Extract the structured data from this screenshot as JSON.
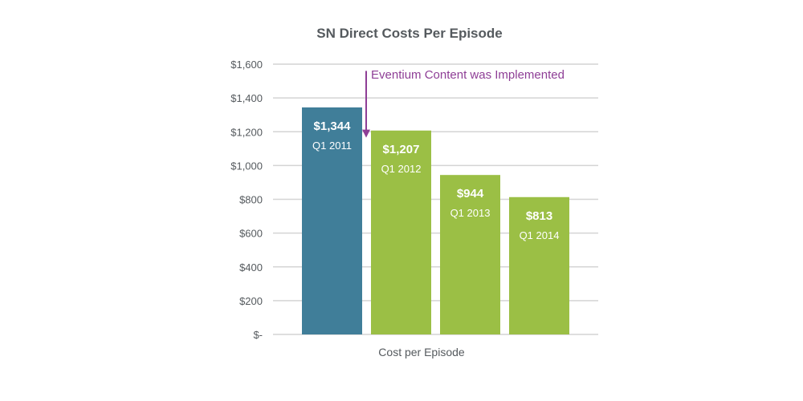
{
  "chart_data": {
    "type": "bar",
    "title": "SN Direct Costs Per Episode",
    "xlabel": "Cost per Episode",
    "ylabel": "",
    "ylim": [
      0,
      1600
    ],
    "yticks": [
      0,
      200,
      400,
      600,
      800,
      1000,
      1200,
      1400,
      1600
    ],
    "ytick_labels": [
      "$-",
      "$200",
      "$400",
      "$600",
      "$800",
      "$1,000",
      "$1,200",
      "$1,400",
      "$1,600"
    ],
    "grid": true,
    "categories": [
      "Q1 2011",
      "Q1 2012",
      "Q1 2013",
      "Q1 2014"
    ],
    "values": [
      1344,
      1207,
      944,
      813
    ],
    "value_labels": [
      "$1,344",
      "$1,207",
      "$944",
      "$813"
    ],
    "bar_colors": [
      "#407e99",
      "#9bbf45",
      "#9bbf45",
      "#9bbf45"
    ],
    "annotation": {
      "text": "Eventium Content was Implemented",
      "color": "#8e3e96",
      "between_categories": [
        "Q1 2011",
        "Q1 2012"
      ]
    }
  }
}
